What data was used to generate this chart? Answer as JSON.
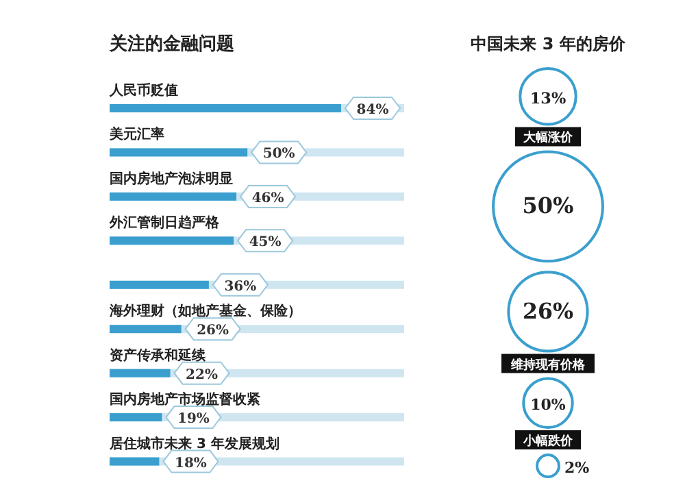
{
  "chart_data": [
    {
      "type": "bar",
      "orientation": "horizontal",
      "title": "关注的金融问题",
      "categories": [
        "人民币贬值",
        "美元汇率",
        "国内房地产泡沫明显",
        "外汇管制日趋严格",
        null,
        "海外理财（如地产基金、保险）",
        "资产传承和延续",
        "国内房地产市场监督收紧",
        "居住城市未来 3 年发展规划"
      ],
      "values": [
        84,
        50,
        46,
        45,
        36,
        26,
        22,
        19,
        18
      ],
      "color": "#3a9fce",
      "data_labels": true,
      "value_labels": [
        "84%",
        "50%",
        "46%",
        "45%",
        "36%",
        "26%",
        "22%",
        "19%",
        "18%"
      ]
    },
    {
      "type": "other",
      "title": "中国未来 3 年的房价",
      "categories": [
        "大幅涨价",
        null,
        "维持现有价格",
        "小幅跌价",
        null
      ],
      "values": [
        13,
        50,
        26,
        10,
        2
      ],
      "value_labels": [
        "13%",
        "50%",
        "26%",
        "10%",
        "2%"
      ],
      "color": "#3a9fce"
    }
  ]
}
